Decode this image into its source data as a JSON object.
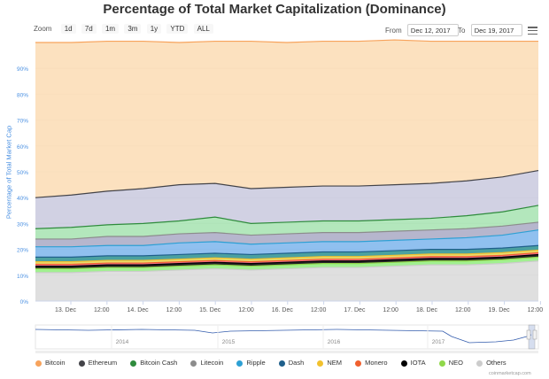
{
  "title": "Percentage of Total Market Capitalization (Dominance)",
  "toolbar": {
    "zoom_label": "Zoom",
    "zoom_buttons": [
      "1d",
      "7d",
      "1m",
      "3m",
      "1y",
      "YTD",
      "ALL"
    ],
    "from_label": "From",
    "from_value": "Dec 12, 2017",
    "to_label": "To",
    "to_value": "Dec 19, 2017"
  },
  "credit": "coinmarketcap.com",
  "navigator": {
    "year_labels": [
      "2014",
      "2015",
      "2016",
      "2017"
    ]
  },
  "chart_data": {
    "type": "area",
    "stacked": true,
    "title": "Percentage of Total Market Capitalization (Dominance)",
    "ylabel": "Percentage of Total Market Cap",
    "ylim": [
      0,
      100
    ],
    "y_ticks": [
      "0%",
      "10%",
      "20%",
      "30%",
      "40%",
      "50%",
      "60%",
      "70%",
      "80%",
      "90%"
    ],
    "x_ticks": [
      "13. Dec",
      "12:00",
      "14. Dec",
      "12:00",
      "15. Dec",
      "12:00",
      "16. Dec",
      "12:00",
      "17. Dec",
      "12:00",
      "18. Dec",
      "12:00",
      "19. Dec",
      "12:00"
    ],
    "x": [
      "Dec 12 18:00",
      "Dec 13 00:00",
      "Dec 13 12:00",
      "Dec 14 00:00",
      "Dec 14 12:00",
      "Dec 15 00:00",
      "Dec 15 12:00",
      "Dec 16 00:00",
      "Dec 16 12:00",
      "Dec 17 00:00",
      "Dec 17 12:00",
      "Dec 18 00:00",
      "Dec 18 12:00",
      "Dec 19 00:00",
      "Dec 19 12:00"
    ],
    "grid": true,
    "legend_position": "bottom",
    "series": [
      {
        "name": "Others",
        "color": "#d9d9d9",
        "values": [
          11.0,
          11.0,
          11.5,
          11.5,
          12.0,
          12.5,
          12.0,
          12.5,
          13.0,
          13.0,
          13.5,
          14.0,
          14.0,
          14.5,
          15.5
        ]
      },
      {
        "name": "NEO",
        "color": "#90ed7d",
        "values": [
          1.5,
          1.5,
          1.5,
          1.5,
          1.5,
          1.5,
          1.5,
          1.5,
          1.5,
          1.5,
          1.5,
          1.5,
          1.5,
          1.5,
          1.5
        ]
      },
      {
        "name": "IOTA",
        "color": "#000000",
        "values": [
          1.0,
          1.0,
          1.0,
          1.0,
          1.0,
          1.0,
          1.0,
          1.0,
          1.0,
          1.0,
          1.0,
          1.0,
          1.0,
          1.0,
          1.0
        ]
      },
      {
        "name": "Monero",
        "color": "#f15c80",
        "values": [
          0.7,
          0.7,
          0.7,
          0.7,
          0.7,
          0.7,
          0.7,
          0.7,
          0.7,
          0.7,
          0.7,
          0.7,
          0.7,
          0.7,
          0.7
        ]
      },
      {
        "name": "NEM",
        "color": "#e4d354",
        "values": [
          1.0,
          1.0,
          1.0,
          1.0,
          1.0,
          1.0,
          1.0,
          1.0,
          1.0,
          1.0,
          1.0,
          1.0,
          1.0,
          1.0,
          1.0
        ]
      },
      {
        "name": "Dash",
        "color": "#2b908f",
        "values": [
          1.8,
          1.8,
          1.8,
          1.8,
          1.8,
          1.8,
          1.8,
          1.8,
          1.8,
          1.8,
          1.8,
          1.8,
          1.8,
          1.8,
          1.8
        ]
      },
      {
        "name": "Ripple",
        "color": "#7cb5ec",
        "values": [
          4.0,
          4.0,
          4.0,
          4.0,
          4.5,
          4.5,
          4.0,
          4.0,
          4.0,
          4.0,
          4.0,
          4.0,
          4.5,
          5.0,
          6.0
        ]
      },
      {
        "name": "Litecoin",
        "color": "#a9a9c4",
        "values": [
          3.0,
          3.0,
          3.5,
          3.5,
          3.5,
          3.5,
          3.5,
          3.5,
          3.5,
          3.5,
          3.5,
          3.5,
          3.5,
          3.5,
          3.0
        ]
      },
      {
        "name": "Bitcoin Cash",
        "color": "#a6e3b0",
        "values": [
          4.0,
          4.5,
          4.5,
          5.0,
          5.0,
          6.0,
          4.5,
          4.5,
          4.5,
          4.5,
          4.5,
          4.5,
          5.0,
          5.5,
          6.5
        ]
      },
      {
        "name": "Ethereum",
        "color": "#c9c9de",
        "values": [
          12.0,
          12.5,
          13.0,
          13.5,
          14.0,
          13.0,
          13.5,
          13.5,
          13.5,
          13.5,
          13.5,
          13.5,
          13.5,
          13.5,
          13.5
        ]
      },
      {
        "name": "Bitcoin",
        "color": "#fcdcb4",
        "values": [
          60.0,
          59.0,
          58.0,
          57.0,
          55.0,
          55.0,
          57.0,
          56.0,
          56.0,
          56.0,
          56.0,
          55.0,
          54.0,
          52.5,
          50.0
        ]
      }
    ]
  },
  "legend": [
    {
      "label": "Bitcoin",
      "color": "#f7a35c"
    },
    {
      "label": "Ethereum",
      "color": "#434348"
    },
    {
      "label": "Bitcoin Cash",
      "color": "#2e8b3c"
    },
    {
      "label": "Litecoin",
      "color": "#8c8c8c"
    },
    {
      "label": "Ripple",
      "color": "#2da0d4"
    },
    {
      "label": "Dash",
      "color": "#1f5f8b"
    },
    {
      "label": "NEM",
      "color": "#f2c12e"
    },
    {
      "label": "Monero",
      "color": "#f0602e"
    },
    {
      "label": "IOTA",
      "color": "#000000"
    },
    {
      "label": "NEO",
      "color": "#90d84a"
    },
    {
      "label": "Others",
      "color": "#cccccc"
    }
  ]
}
